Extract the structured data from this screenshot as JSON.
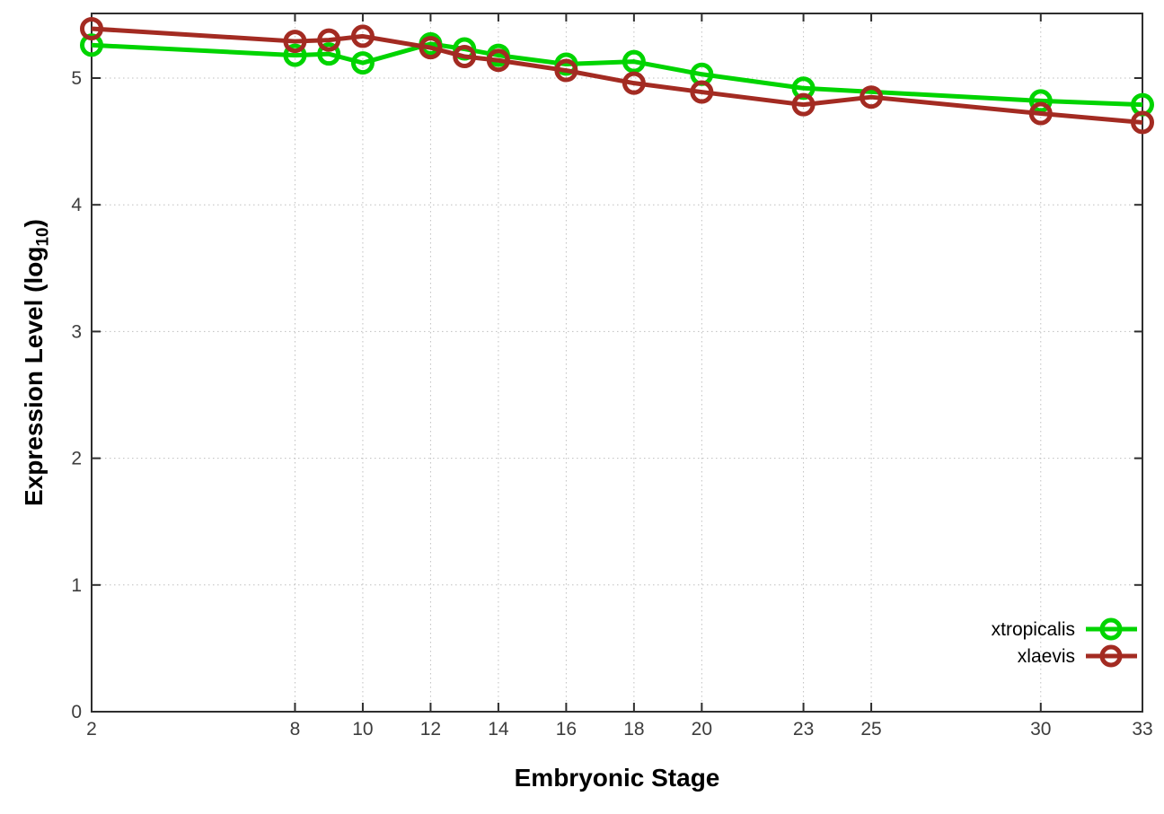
{
  "chart_data": {
    "type": "line",
    "title": "",
    "xlabel": "Embryonic Stage",
    "ylabel": {
      "prefix": "Expression Level (log",
      "sub": "10",
      "suffix": ")"
    },
    "xlim": [
      2,
      33
    ],
    "ylim": [
      0,
      5.51
    ],
    "x_ticks": [
      2,
      8,
      10,
      12,
      14,
      16,
      18,
      20,
      23,
      25,
      30,
      33
    ],
    "y_ticks": [
      0,
      1,
      2,
      3,
      4,
      5
    ],
    "grid": true,
    "legend_position": "inside-right-lower",
    "colors": {
      "axis": "#2e2e2e",
      "grid": "#bfbfbf",
      "tick_label": "#3d3d3d",
      "legend_text": "#000000"
    },
    "series": [
      {
        "name": "xtropicalis",
        "color": "#00d400",
        "marker": "open-circle",
        "x": [
          2,
          8,
          9,
          10,
          12,
          13,
          14,
          16,
          18,
          20,
          23,
          30,
          33
        ],
        "values": [
          5.26,
          5.18,
          5.19,
          5.12,
          5.27,
          5.23,
          5.18,
          5.11,
          5.13,
          5.03,
          4.92,
          4.82,
          4.79
        ]
      },
      {
        "name": "xlaevis",
        "color": "#a32b22",
        "marker": "open-circle",
        "x": [
          2,
          8,
          9,
          10,
          12,
          13,
          14,
          16,
          18,
          20,
          23,
          25,
          30,
          33
        ],
        "values": [
          5.39,
          5.29,
          5.3,
          5.33,
          5.24,
          5.17,
          5.14,
          5.06,
          4.96,
          4.89,
          4.79,
          4.85,
          4.72,
          4.65
        ]
      }
    ]
  }
}
